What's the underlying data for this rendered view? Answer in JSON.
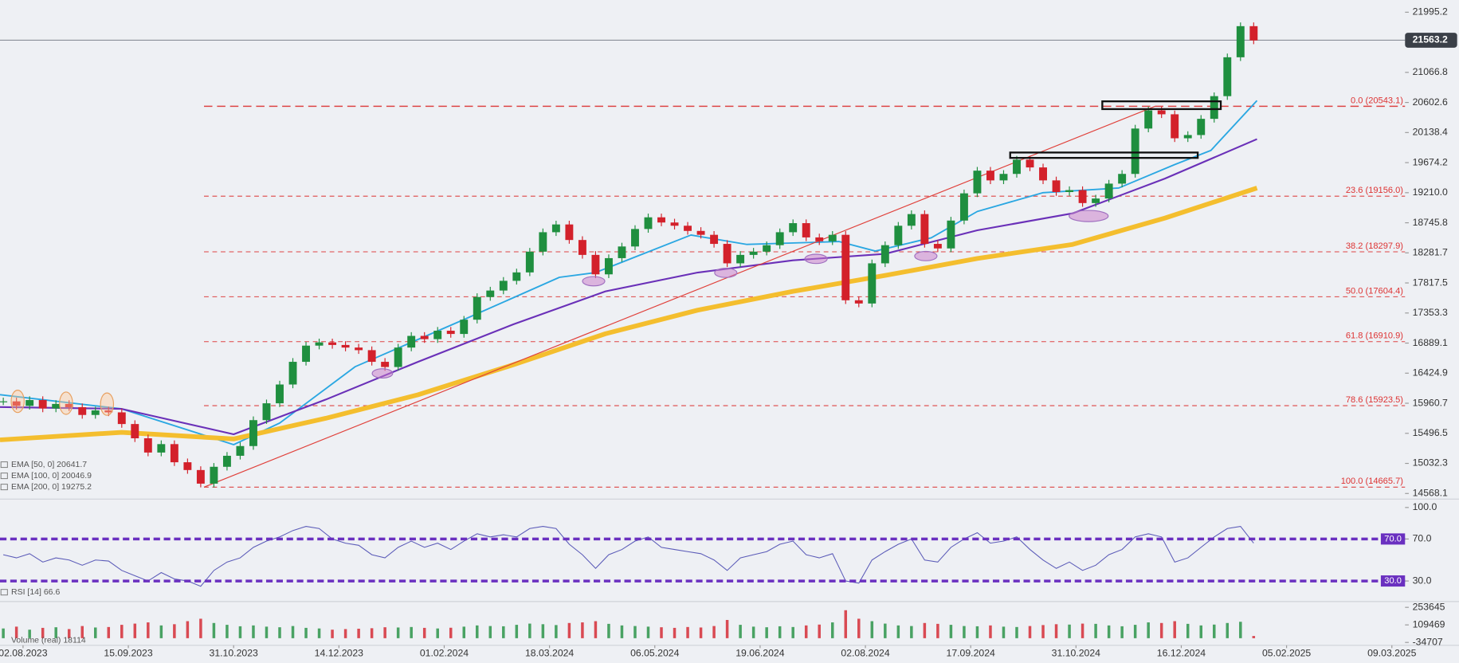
{
  "chart_data": [
    {
      "type": "candlestick",
      "x": [
        -6,
        -2,
        2,
        6,
        10,
        14,
        18,
        22,
        26,
        30,
        34,
        38,
        42,
        46,
        50,
        54,
        58,
        62,
        66,
        70,
        74,
        78,
        82,
        86,
        90,
        94,
        98,
        102,
        106,
        110,
        114,
        118,
        122,
        126,
        130,
        134,
        138,
        142,
        146,
        150,
        154,
        158,
        162,
        166,
        170,
        174,
        178,
        182,
        186,
        190,
        194,
        198,
        202,
        206,
        210,
        214,
        218,
        222,
        226,
        230,
        234,
        238,
        242,
        246,
        250,
        254,
        258,
        262,
        266,
        270,
        274,
        278,
        282,
        286,
        290,
        294,
        298,
        302,
        306,
        310,
        314,
        318,
        322,
        326,
        330,
        334,
        338,
        342,
        346,
        350,
        354,
        358,
        362,
        366,
        370,
        374
      ],
      "close": [
        15990,
        15920,
        16010,
        15880,
        15950,
        15900,
        15780,
        15850,
        15820,
        15640,
        15420,
        15200,
        15330,
        15050,
        14930,
        14720,
        14980,
        15150,
        15300,
        15700,
        15960,
        16250,
        16600,
        16850,
        16900,
        16860,
        16820,
        16780,
        16600,
        16520,
        16820,
        17000,
        16950,
        17080,
        17030,
        17250,
        17600,
        17700,
        17850,
        17980,
        18300,
        18600,
        18720,
        18480,
        18250,
        17950,
        18200,
        18380,
        18650,
        18830,
        18750,
        18700,
        18620,
        18560,
        18420,
        18120,
        18250,
        18300,
        18400,
        18600,
        18740,
        18520,
        18460,
        18560,
        17550,
        17500,
        18120,
        18400,
        18700,
        18880,
        18420,
        18350,
        18780,
        19200,
        19550,
        19400,
        19500,
        19720,
        19600,
        19400,
        19220,
        19250,
        19050,
        19120,
        19350,
        19500,
        20200,
        20480,
        20420,
        20050,
        20100,
        20350,
        20700,
        21300,
        21780,
        21560
      ],
      "up_color": "#1f8f3f",
      "down_color": "#d3212b",
      "xlim": [
        -7,
        420
      ],
      "ylim": [
        14495.6,
        22183.8
      ],
      "yticks": [
        21995.2,
        21066.8,
        20602.6,
        20138.4,
        19674.2,
        {
          "value": 19210.0,
          "label": "19210.0"
        },
        18745.8,
        18281.7,
        17817.5,
        17353.3,
        16889.1,
        16424.9,
        15960.7,
        15496.5,
        15032.3,
        14568.1
      ],
      "last_price": 21563.2,
      "series": [
        {
          "name": "EMA [50, 0] 20641.7",
          "color": "#2aa7e2",
          "width": 1.6,
          "x": [
            -7,
            30,
            64,
            78,
            101,
            134,
            163,
            174,
            203,
            220,
            248,
            259,
            276,
            290,
            310,
            333,
            350,
            361,
            375
          ],
          "values": [
            16092,
            15874,
            15322,
            15656,
            16526,
            17252,
            17904,
            17977,
            18557,
            18412,
            18456,
            18310,
            18514,
            18920,
            19210,
            19283,
            19645,
            19863,
            20632
          ]
        },
        {
          "name": "EMA [100, 0] 20046.9",
          "color": "#6a30b8",
          "width": 1.8,
          "x": [
            -7,
            30,
            64,
            92,
            120,
            149,
            177,
            205,
            234,
            262,
            290,
            319,
            347,
            375
          ],
          "values": [
            15903,
            15874,
            15482,
            16018,
            16599,
            17179,
            17687,
            17977,
            18166,
            18267,
            18630,
            18891,
            19428,
            20037
          ]
        },
        {
          "name": "EMA [200, 0] 19275.2",
          "color": "#f4be2e",
          "width": 5,
          "x": [
            -7,
            30,
            64,
            92,
            120,
            149,
            177,
            205,
            234,
            262,
            290,
            319,
            347,
            375
          ],
          "values": [
            15395,
            15511,
            15410,
            15729,
            16091,
            16555,
            17034,
            17397,
            17687,
            17933,
            18194,
            18412,
            18818,
            19283
          ]
        }
      ],
      "fib_start_x": 55,
      "fib_levels": [
        {
          "value": 20543.1,
          "label": "0.0 (20543.1)"
        },
        {
          "value": 19156.0,
          "label": "23.6 (19156.0)"
        },
        {
          "value": 18297.9,
          "label": "38.2 (18297.9)"
        },
        {
          "value": 17604.4,
          "label": "50.0 (17604.4)"
        },
        {
          "value": 16910.9,
          "label": "61.8 (16910.9)"
        },
        {
          "value": 15923.5,
          "label": "78.6 (15923.5)"
        },
        {
          "value": 14665.7,
          "label": "100.0 (14665.7)"
        }
      ],
      "trendline": {
        "x": [
          55,
          344
        ],
        "values": [
          14665.7,
          20543.1
        ]
      },
      "zones": [
        {
          "x": [
            328,
            364
          ],
          "values": [
            20500,
            20620
          ]
        },
        {
          "x": [
            300,
            357
          ],
          "values": [
            19747,
            19830
          ]
        }
      ]
    },
    {
      "type": "line",
      "x": [
        -6,
        -2,
        2,
        6,
        10,
        14,
        18,
        22,
        26,
        30,
        34,
        38,
        42,
        46,
        50,
        54,
        58,
        62,
        66,
        70,
        74,
        78,
        82,
        86,
        90,
        94,
        98,
        102,
        106,
        110,
        114,
        118,
        122,
        126,
        130,
        134,
        138,
        142,
        146,
        150,
        154,
        158,
        162,
        166,
        170,
        174,
        178,
        182,
        186,
        190,
        194,
        198,
        202,
        206,
        210,
        214,
        218,
        222,
        226,
        230,
        234,
        238,
        242,
        246,
        250,
        254,
        258,
        262,
        266,
        270,
        274,
        278,
        282,
        286,
        290,
        294,
        298,
        302,
        306,
        310,
        314,
        318,
        322,
        326,
        330,
        334,
        338,
        342,
        346,
        350,
        354,
        358,
        362,
        366,
        370,
        374
      ],
      "values": [
        55,
        52,
        56,
        48,
        52,
        50,
        45,
        50,
        49,
        40,
        35,
        30,
        38,
        32,
        30,
        25,
        40,
        48,
        52,
        62,
        68,
        72,
        78,
        82,
        80,
        70,
        66,
        64,
        55,
        52,
        62,
        68,
        62,
        66,
        60,
        68,
        75,
        72,
        74,
        72,
        80,
        82,
        80,
        65,
        55,
        42,
        55,
        60,
        68,
        72,
        62,
        60,
        58,
        56,
        50,
        40,
        52,
        55,
        58,
        65,
        68,
        55,
        52,
        56,
        30,
        28,
        50,
        58,
        65,
        70,
        50,
        48,
        62,
        70,
        76,
        66,
        68,
        72,
        60,
        50,
        42,
        48,
        40,
        45,
        55,
        60,
        72,
        75,
        72,
        48,
        52,
        62,
        72,
        80,
        82,
        66
      ],
      "name": "RSI [14] 66.6",
      "color": "#5b5bb8",
      "xlim": [
        -7,
        420
      ],
      "ylim": [
        11.3,
        107.1
      ],
      "yticks": [
        {
          "value": 100,
          "label": "100.0"
        },
        {
          "value": 70,
          "label": "70.0"
        },
        {
          "value": 30,
          "label": "30.0"
        }
      ],
      "levels": [
        {
          "value": 70,
          "label": "70.0"
        },
        {
          "value": 30,
          "label": "30.0"
        }
      ],
      "level_color": "#6a30c0"
    },
    {
      "type": "bar",
      "x": [
        -6,
        -2,
        2,
        6,
        10,
        14,
        18,
        22,
        26,
        30,
        34,
        38,
        42,
        46,
        50,
        54,
        58,
        62,
        66,
        70,
        74,
        78,
        82,
        86,
        90,
        94,
        98,
        102,
        106,
        110,
        114,
        118,
        122,
        126,
        130,
        134,
        138,
        142,
        146,
        150,
        154,
        158,
        162,
        166,
        170,
        174,
        178,
        182,
        186,
        190,
        194,
        198,
        202,
        206,
        210,
        214,
        218,
        222,
        226,
        230,
        234,
        238,
        242,
        246,
        250,
        254,
        258,
        262,
        266,
        270,
        274,
        278,
        282,
        286,
        290,
        294,
        298,
        302,
        306,
        310,
        314,
        318,
        322,
        326,
        330,
        334,
        338,
        342,
        346,
        350,
        354,
        358,
        362,
        366,
        370,
        374
      ],
      "values": [
        80000,
        95000,
        70000,
        85000,
        90000,
        75000,
        100000,
        88000,
        92000,
        110000,
        120000,
        130000,
        105000,
        115000,
        140000,
        160000,
        125000,
        110000,
        98000,
        105000,
        95000,
        90000,
        100000,
        85000,
        80000,
        70000,
        75000,
        78000,
        82000,
        90000,
        88000,
        92000,
        85000,
        80000,
        86000,
        95000,
        105000,
        100000,
        98000,
        110000,
        120000,
        115000,
        108000,
        125000,
        130000,
        140000,
        118000,
        105000,
        100000,
        95000,
        90000,
        85000,
        92000,
        88000,
        100000,
        150000,
        110000,
        95000,
        90000,
        98000,
        92000,
        105000,
        112000,
        130000,
        230000,
        160000,
        140000,
        120000,
        105000,
        100000,
        125000,
        118000,
        110000,
        100000,
        98000,
        105000,
        95000,
        92000,
        100000,
        108000,
        115000,
        112000,
        120000,
        118000,
        105000,
        98000,
        110000,
        130000,
        125000,
        140000,
        118000,
        105000,
        112000,
        125000,
        135000,
        18114
      ],
      "name": "Volume (real) 18114",
      "color": "#c44",
      "xlim": [
        -7,
        420
      ],
      "ylim": [
        -50727,
        293694
      ],
      "yticks": [
        253645,
        109469,
        -34707
      ],
      "xticks": [
        {
          "value": 0,
          "label": "02.08.2023"
        },
        {
          "value": 32,
          "label": "15.09.2023"
        },
        {
          "value": 64,
          "label": "31.10.2023"
        },
        {
          "value": 96,
          "label": "14.12.2023"
        },
        {
          "value": 128,
          "label": "01.02.2024"
        },
        {
          "value": 160,
          "label": "18.03.2024"
        },
        {
          "value": 192,
          "label": "06.05.2024"
        },
        {
          "value": 224,
          "label": "19.06.2024"
        },
        {
          "value": 256,
          "label": "02.08.2024"
        },
        {
          "value": 288,
          "label": "17.09.2024"
        },
        {
          "value": 320,
          "label": "31.10.2024"
        },
        {
          "value": 352,
          "label": "16.12.2024"
        },
        {
          "value": 384,
          "label": "05.02.2025"
        },
        {
          "value": 416,
          "label": "09.03.2025"
        }
      ]
    }
  ]
}
